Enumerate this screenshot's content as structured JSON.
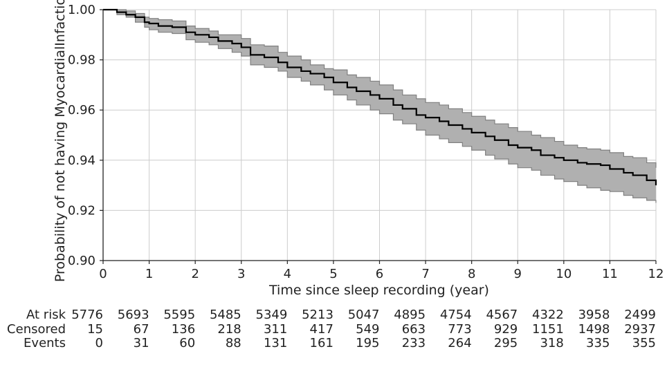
{
  "chart_data": {
    "type": "line",
    "subtype": "kaplan-meier-survival",
    "title": "",
    "xlabel": "Time since sleep recording (year)",
    "ylabel": "Probability of not having MyocardialInfaction",
    "xlim": [
      0,
      12
    ],
    "ylim": [
      0.9,
      1.0
    ],
    "xticks": [
      0,
      1,
      2,
      3,
      4,
      5,
      6,
      7,
      8,
      9,
      10,
      11,
      12
    ],
    "yticks": [
      0.9,
      0.92,
      0.94,
      0.96,
      0.98,
      1.0
    ],
    "ytick_labels": [
      "0.90",
      "0.92",
      "0.94",
      "0.96",
      "0.98",
      "1.00"
    ],
    "grid": true,
    "colors": {
      "line": "#000000",
      "band": "#b0b0b0",
      "band_edge": "#808080",
      "grid": "#cccccc"
    },
    "series": [
      {
        "x": [
          0,
          0.3,
          0.5,
          0.7,
          0.9,
          1.0,
          1.2,
          1.5,
          1.8,
          2.0,
          2.3,
          2.5,
          2.8,
          3.0,
          3.2,
          3.5,
          3.8,
          4.0,
          4.3,
          4.5,
          4.8,
          5.0,
          5.3,
          5.5,
          5.8,
          6.0,
          6.3,
          6.5,
          6.8,
          7.0,
          7.3,
          7.5,
          7.8,
          8.0,
          8.3,
          8.5,
          8.8,
          9.0,
          9.3,
          9.5,
          9.8,
          10.0,
          10.3,
          10.5,
          10.8,
          11.0,
          11.3,
          11.5,
          11.8,
          12.0
        ],
        "y": [
          1.0,
          0.999,
          0.998,
          0.997,
          0.995,
          0.9945,
          0.9935,
          0.993,
          0.991,
          0.99,
          0.989,
          0.9875,
          0.9865,
          0.985,
          0.982,
          0.981,
          0.979,
          0.977,
          0.9755,
          0.9745,
          0.973,
          0.971,
          0.969,
          0.9675,
          0.966,
          0.9645,
          0.962,
          0.9605,
          0.958,
          0.957,
          0.9555,
          0.954,
          0.9525,
          0.951,
          0.9495,
          0.948,
          0.946,
          0.945,
          0.944,
          0.942,
          0.941,
          0.94,
          0.939,
          0.9385,
          0.938,
          0.9365,
          0.935,
          0.934,
          0.932,
          0.93
        ],
        "ci_lower": [
          1.0,
          0.998,
          0.997,
          0.995,
          0.993,
          0.992,
          0.991,
          0.9905,
          0.988,
          0.987,
          0.986,
          0.9845,
          0.983,
          0.9815,
          0.978,
          0.977,
          0.9755,
          0.973,
          0.9715,
          0.97,
          0.968,
          0.966,
          0.964,
          0.962,
          0.96,
          0.9585,
          0.956,
          0.9545,
          0.952,
          0.95,
          0.9485,
          0.947,
          0.9455,
          0.944,
          0.942,
          0.9405,
          0.9385,
          0.937,
          0.936,
          0.934,
          0.9325,
          0.9315,
          0.93,
          0.929,
          0.928,
          0.9275,
          0.926,
          0.925,
          0.924,
          0.923
        ],
        "ci_upper": [
          1.0,
          1.0,
          0.9995,
          0.9985,
          0.997,
          0.9965,
          0.996,
          0.9955,
          0.9935,
          0.9925,
          0.9915,
          0.99,
          0.99,
          0.9885,
          0.986,
          0.9855,
          0.983,
          0.9815,
          0.98,
          0.978,
          0.9765,
          0.976,
          0.974,
          0.973,
          0.9715,
          0.97,
          0.968,
          0.966,
          0.9645,
          0.963,
          0.962,
          0.9605,
          0.959,
          0.9575,
          0.956,
          0.9545,
          0.953,
          0.9515,
          0.95,
          0.949,
          0.9475,
          0.946,
          0.945,
          0.9445,
          0.944,
          0.943,
          0.9415,
          0.941,
          0.939,
          0.937
        ]
      }
    ],
    "risk_table": {
      "times": [
        0,
        1,
        2,
        3,
        4,
        5,
        6,
        7,
        8,
        9,
        10,
        11,
        12
      ],
      "rows": [
        {
          "label": "At risk",
          "values": [
            "5776",
            "5693",
            "5595",
            "5485",
            "5349",
            "5213",
            "5047",
            "4895",
            "4754",
            "4567",
            "4322",
            "3958",
            "2499"
          ]
        },
        {
          "label": "Censored",
          "values": [
            "15",
            "67",
            "136",
            "218",
            "311",
            "417",
            "549",
            "663",
            "773",
            "929",
            "1151",
            "1498",
            "2937"
          ]
        },
        {
          "label": "Events",
          "values": [
            "0",
            "31",
            "60",
            "88",
            "131",
            "161",
            "195",
            "233",
            "264",
            "295",
            "318",
            "335",
            "355"
          ]
        }
      ]
    }
  }
}
